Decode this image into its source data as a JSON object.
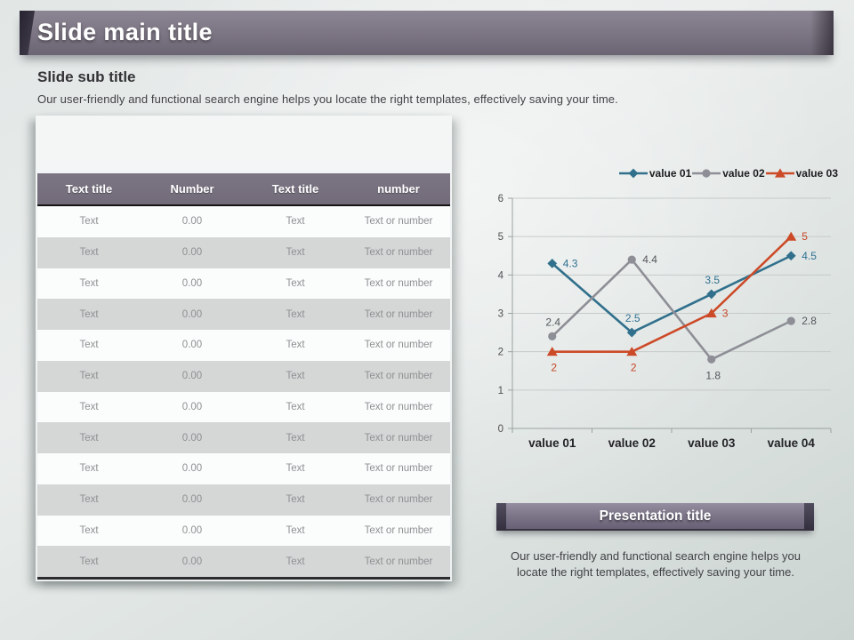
{
  "colors": {
    "title_bar": "#7b7482",
    "table_header_bg": "#747080",
    "table_row_alt": "#d5d6d6",
    "banner_bg": "#7d7689",
    "series_teal": "#31708c",
    "series_gray": "#8e8e96",
    "series_orange": "#cc4a28"
  },
  "header": {
    "main_title": "Slide main title"
  },
  "intro": {
    "sub_title": "Slide sub title",
    "description": "Our user-friendly and functional search engine helps you locate the right templates, effectively saving your time."
  },
  "table": {
    "headers": [
      "Text title",
      "Number",
      "Text title",
      "number"
    ],
    "rows": [
      [
        "Text",
        "0.00",
        "Text",
        "Text or number"
      ],
      [
        "Text",
        "0.00",
        "Text",
        "Text or number"
      ],
      [
        "Text",
        "0.00",
        "Text",
        "Text or number"
      ],
      [
        "Text",
        "0.00",
        "Text",
        "Text or number"
      ],
      [
        "Text",
        "0.00",
        "Text",
        "Text or number"
      ],
      [
        "Text",
        "0.00",
        "Text",
        "Text or number"
      ],
      [
        "Text",
        "0.00",
        "Text",
        "Text or number"
      ],
      [
        "Text",
        "0.00",
        "Text",
        "Text or number"
      ],
      [
        "Text",
        "0.00",
        "Text",
        "Text or number"
      ],
      [
        "Text",
        "0.00",
        "Text",
        "Text or number"
      ],
      [
        "Text",
        "0.00",
        "Text",
        "Text or number"
      ],
      [
        "Text",
        "0.00",
        "Text",
        "Text or number"
      ]
    ]
  },
  "chart_data": {
    "type": "line",
    "title": "",
    "xlabel": "",
    "ylabel": "",
    "categories": [
      "value 01",
      "value 02",
      "value 03",
      "value 04"
    ],
    "series": [
      {
        "name": "value 01",
        "values": [
          4.3,
          2.5,
          3.5,
          4.5
        ],
        "color": "#31708c",
        "marker": "diamond",
        "label_color": "#2f7091",
        "label_positions": [
          "right",
          "above",
          "above",
          "right"
        ]
      },
      {
        "name": "value 02",
        "values": [
          2.4,
          4.4,
          1.8,
          2.8
        ],
        "color": "#8e8e96",
        "marker": "circle",
        "label_color": "#55565c",
        "label_positions": [
          "above",
          "right",
          "below",
          "right"
        ]
      },
      {
        "name": "value 03",
        "values": [
          2,
          2,
          3,
          5
        ],
        "color": "#cc4a28",
        "marker": "triangle",
        "label_color": "#c64526",
        "label_positions": [
          "below",
          "below",
          "right",
          "right"
        ]
      }
    ],
    "ylim": [
      0,
      6
    ],
    "yticks": [
      0,
      1,
      2,
      3,
      4,
      5,
      6
    ],
    "grid": true,
    "legend_position": "top-right"
  },
  "footer": {
    "banner_title": "Presentation title",
    "description": "Our user-friendly and functional search engine helps you locate the right templates, effectively saving your time."
  }
}
